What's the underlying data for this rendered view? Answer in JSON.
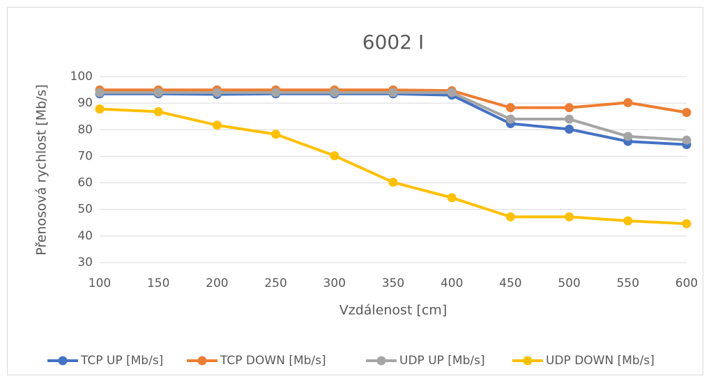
{
  "chart_data": {
    "type": "line",
    "title": "6002 I",
    "x_label": "Vzdálenost [cm]",
    "y_label": "Přenosová rychlost [Mb/s]",
    "x": [
      100,
      150,
      200,
      250,
      300,
      350,
      400,
      450,
      500,
      550,
      600
    ],
    "xlim": [
      100,
      600
    ],
    "xticks": [
      100,
      150,
      200,
      250,
      300,
      350,
      400,
      450,
      500,
      550,
      600
    ],
    "ylim": [
      30,
      100
    ],
    "yticks": [
      30,
      40,
      50,
      60,
      70,
      80,
      90,
      100
    ],
    "grid": true,
    "legend": "bottom",
    "series": [
      {
        "name": "TCP UP [Mb/s]",
        "color": "#4472c4",
        "values": [
          93.5,
          93.5,
          93.3,
          93.5,
          93.5,
          93.5,
          93.0,
          82.3,
          80.2,
          75.6,
          74.4
        ]
      },
      {
        "name": "TCP DOWN [Mb/s]",
        "color": "#ed7d31",
        "values": [
          95.0,
          95.0,
          95.0,
          95.0,
          95.0,
          95.0,
          94.7,
          88.3,
          88.3,
          90.2,
          86.5
        ]
      },
      {
        "name": "UDP UP [Mb/s]",
        "color": "#a5a5a5",
        "values": [
          94.0,
          94.0,
          94.0,
          94.0,
          94.0,
          94.0,
          94.0,
          84.0,
          84.0,
          77.5,
          76.1
        ]
      },
      {
        "name": "UDP DOWN [Mb/s]",
        "color": "#ffc000",
        "values": [
          87.8,
          86.8,
          81.7,
          78.3,
          70.2,
          60.2,
          54.4,
          47.2,
          47.2,
          45.7,
          44.6
        ]
      }
    ]
  }
}
